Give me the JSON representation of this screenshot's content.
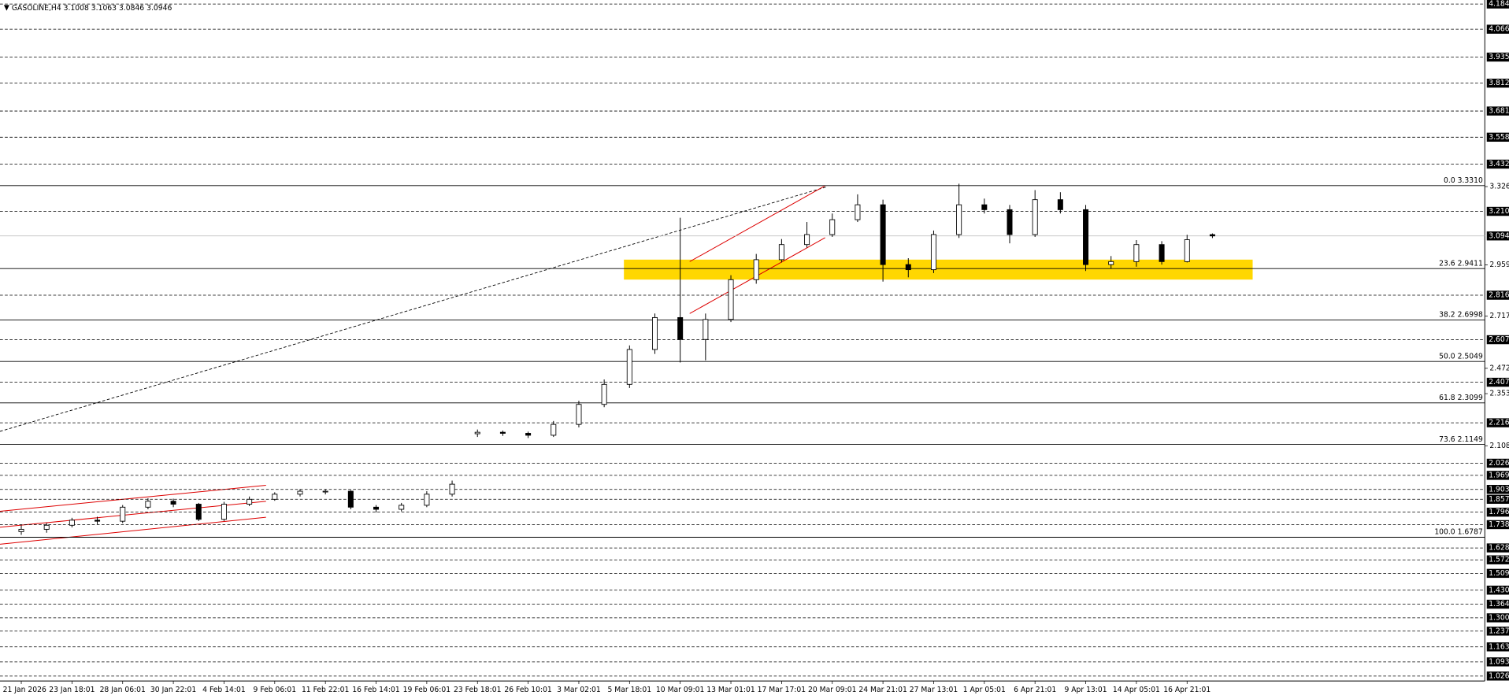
{
  "chart_data": {
    "type": "candlestick",
    "title": "GASOLINE,H4",
    "categories": [
      "21 Jan 2026",
      null,
      "23 Jan 18:01",
      null,
      "28 Jan 06:01",
      null,
      "30 Jan 22:01",
      null,
      "4 Feb 14:01",
      null,
      "9 Feb 06:01",
      null,
      "11 Feb 22:01",
      null,
      "16 Feb 14:01",
      null,
      "19 Feb 06:01",
      null,
      "23 Feb 18:01",
      null,
      "26 Feb 10:01",
      null,
      "3 Mar 02:01",
      null,
      "5 Mar 18:01",
      null,
      "10 Mar 09:01",
      null,
      "13 Mar 01:01",
      null,
      "17 Mar 17:01",
      null,
      "20 Mar 09:01",
      null,
      "24 Mar 21:01",
      null,
      "27 Mar 13:01",
      null,
      "1 Apr 05:01",
      null,
      "6 Apr 21:01",
      null,
      "9 Apr 13:01",
      null,
      "14 Apr 05:01",
      null,
      "16 Apr 21:01",
      null
    ],
    "open": [
      1.705,
      1.716,
      1.735,
      1.759,
      1.754,
      1.82,
      1.848,
      1.834,
      1.763,
      1.834,
      1.857,
      1.881,
      1.895,
      1.895,
      1.82,
      1.81,
      1.829,
      1.881,
      2.165,
      2.172,
      2.167,
      2.158,
      2.209,
      2.303,
      2.397,
      2.561,
      2.711,
      2.608,
      2.702,
      2.889,
      2.983,
      3.054,
      3.101,
      3.171,
      3.241,
      2.96,
      2.936,
      3.101,
      3.241,
      3.218,
      3.101,
      3.265,
      3.218,
      2.96,
      2.974,
      3.054,
      2.974,
      3.1008
    ],
    "high": [
      1.735,
      1.745,
      1.77,
      1.775,
      1.83,
      1.862,
      1.86,
      1.84,
      1.845,
      1.87,
      1.89,
      1.905,
      1.905,
      1.9,
      1.83,
      1.84,
      1.895,
      1.945,
      2.185,
      2.18,
      2.175,
      2.225,
      2.32,
      2.42,
      2.58,
      2.73,
      3.18,
      2.73,
      2.91,
      3.01,
      3.08,
      3.16,
      3.2,
      3.29,
      3.265,
      2.99,
      3.12,
      3.34,
      3.27,
      3.24,
      3.31,
      3.3,
      3.24,
      3.0,
      3.075,
      3.07,
      3.1,
      3.1063
    ],
    "low": [
      1.69,
      1.7,
      1.725,
      1.74,
      1.745,
      1.81,
      1.82,
      1.755,
      1.755,
      1.825,
      1.85,
      1.87,
      1.88,
      1.81,
      1.795,
      1.8,
      1.82,
      1.87,
      2.15,
      2.155,
      2.145,
      2.15,
      2.195,
      2.29,
      2.38,
      2.54,
      2.5,
      2.51,
      2.69,
      2.87,
      2.97,
      3.04,
      3.09,
      3.16,
      2.88,
      2.9,
      2.92,
      3.085,
      3.2,
      3.06,
      3.09,
      3.2,
      2.93,
      2.94,
      2.95,
      2.96,
      2.97,
      3.0846
    ],
    "close": [
      1.716,
      1.735,
      1.759,
      1.754,
      1.82,
      1.848,
      1.834,
      1.763,
      1.834,
      1.857,
      1.881,
      1.895,
      1.895,
      1.82,
      1.81,
      1.829,
      1.881,
      1.928,
      2.172,
      2.167,
      2.158,
      2.209,
      2.303,
      2.397,
      2.561,
      2.711,
      2.608,
      2.702,
      2.889,
      2.983,
      3.054,
      3.101,
      3.171,
      3.241,
      2.96,
      2.936,
      3.101,
      3.241,
      3.218,
      3.101,
      3.265,
      3.218,
      2.96,
      2.974,
      3.054,
      2.974,
      3.077,
      3.0946
    ],
    "ylim": [
      1.0265,
      4.1845
    ],
    "yticks": [
      3.3265,
      {
        "value": 2.959,
        "label": "2.9590"
      },
      2.7175,
      2.4725,
      2.3535,
      2.1085
    ],
    "levels": [
      4.1845,
      {
        "value": 4.066,
        "label": "4.0660"
      },
      {
        "value": 3.935,
        "label": "3.9350"
      },
      3.8125,
      3.6815,
      3.5585,
      {
        "value": 3.432,
        "label": "3.4320"
      },
      {
        "value": 3.21,
        "label": "3.2100"
      },
      {
        "value": 2.816,
        "label": "2.8160"
      },
      {
        "value": 2.607,
        "label": "2.6070"
      },
      {
        "value": 2.407,
        "label": "2.4070"
      },
      2.2165,
      2.0265,
      1.9695,
      1.9035,
      {
        "value": 1.857,
        "label": "1.8570"
      },
      1.7965,
      {
        "value": 1.738,
        "label": "1.7380"
      },
      1.6285,
      1.5725,
      {
        "value": 1.509,
        "label": "1.5090"
      },
      {
        "value": 1.43,
        "label": "1.4300"
      },
      {
        "value": 1.364,
        "label": "1.3640"
      },
      {
        "value": 1.3,
        "label": "1.3000"
      },
      1.2375,
      1.1635,
      {
        "value": 1.093,
        "label": "1.0930"
      },
      1.0265
    ],
    "fibonacci": [
      {
        "value": 3.331,
        "label": "0.0 3.3310"
      },
      {
        "value": 2.9411,
        "label": "23.6 2.9411"
      },
      {
        "value": 2.6998,
        "label": "38.2 2.6998"
      },
      {
        "value": 2.5049,
        "label": "50.0 2.5049"
      },
      {
        "value": 2.3099,
        "label": "61.8 2.3099"
      },
      {
        "value": 2.1149,
        "label": "73.6 2.1149"
      },
      {
        "value": 1.6787,
        "label": "100.0 1.6787"
      }
    ]
  }
}
